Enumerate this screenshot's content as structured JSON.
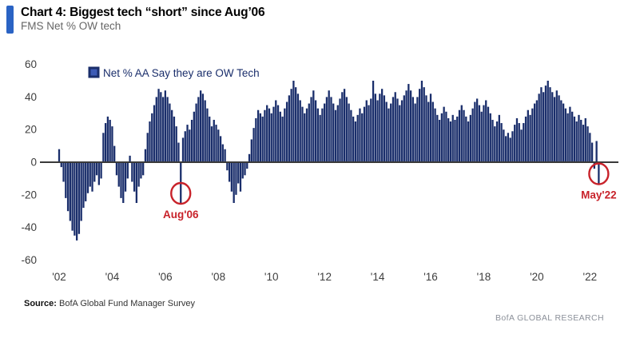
{
  "header": {
    "title": "Chart 4: Biggest tech “short” since Aug’06",
    "subtitle": "FMS Net % OW tech",
    "accent_color": "#2a63c4"
  },
  "chart_data": {
    "type": "bar",
    "title": "Chart 4: Biggest tech “short” since Aug’06",
    "ylabel": "Net % OW tech",
    "legend": "Net % AA Say they are OW Tech",
    "frequency": "monthly",
    "start": "2002-01",
    "end": "2022-05",
    "bar_color": "#1a2e6b",
    "axis_color": "#3d3d3d",
    "annotation_color": "#c8222a",
    "grid": false,
    "ylim": [
      -60,
      60
    ],
    "y_ticks": [
      60,
      40,
      20,
      0,
      -20,
      -40,
      -60
    ],
    "x_tick_labels": [
      "'02",
      "'04",
      "'06",
      "'08",
      "'10",
      "'12",
      "'14",
      "'16",
      "'18",
      "'20",
      "'22"
    ],
    "x_tick_month_indices": [
      0,
      24,
      48,
      72,
      96,
      120,
      144,
      168,
      192,
      216,
      240
    ],
    "values": [
      8,
      -3,
      -12,
      -22,
      -30,
      -36,
      -42,
      -45,
      -48,
      -44,
      -36,
      -28,
      -24,
      -19,
      -15,
      -18,
      -12,
      -8,
      -14,
      -10,
      18,
      24,
      28,
      26,
      22,
      10,
      -8,
      -15,
      -22,
      -25,
      -18,
      -10,
      4,
      -12,
      -18,
      -25,
      -15,
      -10,
      -8,
      8,
      18,
      25,
      30,
      35,
      40,
      45,
      43,
      40,
      44,
      40,
      36,
      32,
      28,
      22,
      12,
      -25,
      15,
      19,
      23,
      20,
      26,
      31,
      36,
      40,
      44,
      42,
      38,
      33,
      28,
      22,
      26,
      23,
      20,
      16,
      11,
      8,
      -5,
      -12,
      -18,
      -25,
      -20,
      -13,
      -18,
      -10,
      -8,
      -4,
      5,
      14,
      21,
      27,
      32,
      30,
      28,
      32,
      35,
      33,
      30,
      34,
      38,
      35,
      31,
      28,
      33,
      37,
      41,
      45,
      50,
      46,
      42,
      38,
      34,
      30,
      33,
      36,
      40,
      44,
      38,
      33,
      29,
      33,
      36,
      40,
      44,
      40,
      36,
      32,
      35,
      39,
      43,
      45,
      40,
      36,
      32,
      28,
      25,
      29,
      33,
      30,
      34,
      38,
      35,
      39,
      50,
      42,
      38,
      42,
      45,
      41,
      37,
      33,
      36,
      40,
      43,
      39,
      35,
      38,
      41,
      44,
      48,
      44,
      40,
      36,
      40,
      45,
      50,
      46,
      41,
      37,
      42,
      37,
      33,
      29,
      26,
      30,
      34,
      31,
      27,
      25,
      29,
      26,
      28,
      32,
      35,
      32,
      28,
      25,
      29,
      33,
      37,
      39,
      35,
      31,
      35,
      38,
      34,
      30,
      26,
      22,
      25,
      29,
      24,
      20,
      16,
      18,
      15,
      19,
      23,
      27,
      24,
      20,
      24,
      28,
      32,
      29,
      33,
      36,
      38,
      42,
      46,
      43,
      47,
      50,
      46,
      43,
      40,
      44,
      41,
      38,
      36,
      33,
      30,
      34,
      31,
      28,
      25,
      29,
      26,
      23,
      27,
      22,
      18,
      12,
      -4,
      13,
      -13
    ],
    "annotations": [
      {
        "id": "aug06",
        "label": "Aug'06",
        "month_index": 55,
        "value": -25
      },
      {
        "id": "may22",
        "label": "May'22",
        "month_index": 244,
        "value": -13
      }
    ]
  },
  "footer": {
    "source_label": "Source:",
    "source_text": "BofA Global Fund Manager Survey",
    "brand": "BofA GLOBAL RESEARCH"
  }
}
